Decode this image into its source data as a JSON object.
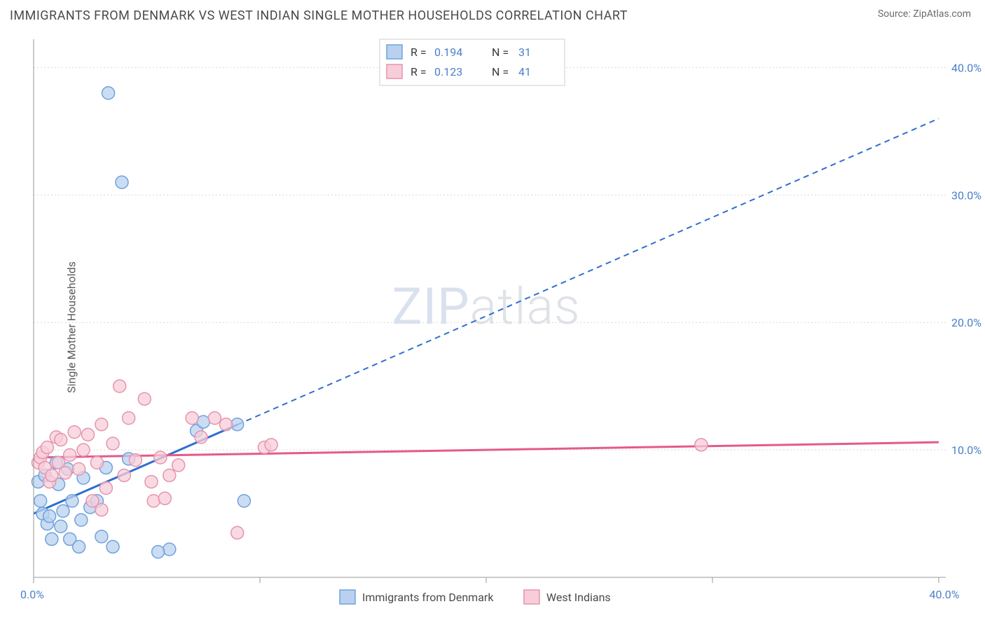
{
  "title": "IMMIGRANTS FROM DENMARK VS WEST INDIAN SINGLE MOTHER HOUSEHOLDS CORRELATION CHART",
  "source_label": "Source: ZipAtlas.com",
  "y_axis_label": "Single Mother Households",
  "watermark": {
    "text1": "ZIP",
    "text2": "atlas"
  },
  "chart": {
    "type": "scatter",
    "xlim": [
      0,
      40
    ],
    "ylim": [
      0,
      42
    ],
    "x_ticks": [
      0,
      10,
      20,
      30,
      40
    ],
    "x_tick_labels": [
      "0.0%",
      "",
      "",
      "",
      "40.0%"
    ],
    "y_ticks": [
      10,
      20,
      30,
      40
    ],
    "y_tick_labels": [
      "10.0%",
      "20.0%",
      "30.0%",
      "40.0%"
    ],
    "background_color": "#ffffff",
    "grid_color": "#d8d8d8",
    "axis_color": "#9a9a9a",
    "tick_label_color": "#4a7fc9",
    "marker_radius": 9,
    "marker_stroke_width": 1.5,
    "trend_line_width": 3,
    "trend_dash": "8,6",
    "series": [
      {
        "name": "Immigrants from Denmark",
        "fill": "#b9d1ef",
        "stroke": "#6ea2de",
        "line_color": "#2f6fd0",
        "R": "0.194",
        "N": "31",
        "trend": {
          "x1": 0,
          "y1": 5.0,
          "x2": 40,
          "y2": 36.0,
          "solid_until_x": 9.0
        },
        "points": [
          [
            0.2,
            7.5
          ],
          [
            0.3,
            6.0
          ],
          [
            0.4,
            5.0
          ],
          [
            0.5,
            8.0
          ],
          [
            0.6,
            4.2
          ],
          [
            0.7,
            4.8
          ],
          [
            0.8,
            3.0
          ],
          [
            1.0,
            9.0
          ],
          [
            1.1,
            7.3
          ],
          [
            1.2,
            4.0
          ],
          [
            1.3,
            5.2
          ],
          [
            1.5,
            8.5
          ],
          [
            1.6,
            3.0
          ],
          [
            1.7,
            6.0
          ],
          [
            2.0,
            2.4
          ],
          [
            2.1,
            4.5
          ],
          [
            2.2,
            7.8
          ],
          [
            2.5,
            5.5
          ],
          [
            2.8,
            6.0
          ],
          [
            3.0,
            3.2
          ],
          [
            3.2,
            8.6
          ],
          [
            3.3,
            38.0
          ],
          [
            3.5,
            2.4
          ],
          [
            3.9,
            31.0
          ],
          [
            4.2,
            9.3
          ],
          [
            6.0,
            2.2
          ],
          [
            7.2,
            11.5
          ],
          [
            7.5,
            12.2
          ],
          [
            9.0,
            12.0
          ],
          [
            9.3,
            6.0
          ],
          [
            5.5,
            2.0
          ]
        ]
      },
      {
        "name": "West Indians",
        "fill": "#f7cdd9",
        "stroke": "#e793ac",
        "line_color": "#e55a8a",
        "R": "0.123",
        "N": "41",
        "trend": {
          "x1": 0,
          "y1": 9.4,
          "x2": 40,
          "y2": 10.6,
          "solid_until_x": 40
        },
        "points": [
          [
            0.2,
            9.0
          ],
          [
            0.3,
            9.4
          ],
          [
            0.4,
            9.8
          ],
          [
            0.5,
            8.6
          ],
          [
            0.6,
            10.2
          ],
          [
            0.7,
            7.5
          ],
          [
            0.8,
            8.0
          ],
          [
            1.0,
            11.0
          ],
          [
            1.1,
            9.0
          ],
          [
            1.2,
            10.8
          ],
          [
            1.4,
            8.2
          ],
          [
            1.6,
            9.6
          ],
          [
            1.8,
            11.4
          ],
          [
            2.0,
            8.5
          ],
          [
            2.2,
            10.0
          ],
          [
            2.4,
            11.2
          ],
          [
            2.6,
            6.0
          ],
          [
            2.8,
            9.0
          ],
          [
            3.0,
            12.0
          ],
          [
            3.2,
            7.0
          ],
          [
            3.5,
            10.5
          ],
          [
            3.8,
            15.0
          ],
          [
            4.0,
            8.0
          ],
          [
            4.2,
            12.5
          ],
          [
            4.5,
            9.2
          ],
          [
            4.9,
            14.0
          ],
          [
            5.2,
            7.5
          ],
          [
            5.3,
            6.0
          ],
          [
            5.6,
            9.4
          ],
          [
            5.8,
            6.2
          ],
          [
            6.0,
            8.0
          ],
          [
            6.4,
            8.8
          ],
          [
            7.0,
            12.5
          ],
          [
            7.4,
            11.0
          ],
          [
            8.0,
            12.5
          ],
          [
            8.5,
            12.0
          ],
          [
            9.0,
            3.5
          ],
          [
            10.2,
            10.2
          ],
          [
            10.5,
            10.4
          ],
          [
            29.5,
            10.4
          ],
          [
            3.0,
            5.3
          ]
        ]
      }
    ]
  },
  "legend_top": {
    "rows": [
      {
        "swatch_fill": "#b9d1ef",
        "swatch_stroke": "#6ea2de",
        "R_label": "R = ",
        "R_value": "0.194",
        "N_label": "N = ",
        "N_value": "31"
      },
      {
        "swatch_fill": "#f7cdd9",
        "swatch_stroke": "#e793ac",
        "R_label": "R = ",
        "R_value": "0.123",
        "N_label": "N = ",
        "N_value": "41"
      }
    ]
  },
  "legend_bottom": {
    "items": [
      {
        "swatch_fill": "#b9d1ef",
        "swatch_stroke": "#6ea2de",
        "label": "Immigrants from Denmark"
      },
      {
        "swatch_fill": "#f7cdd9",
        "swatch_stroke": "#e793ac",
        "label": "West Indians"
      }
    ]
  }
}
